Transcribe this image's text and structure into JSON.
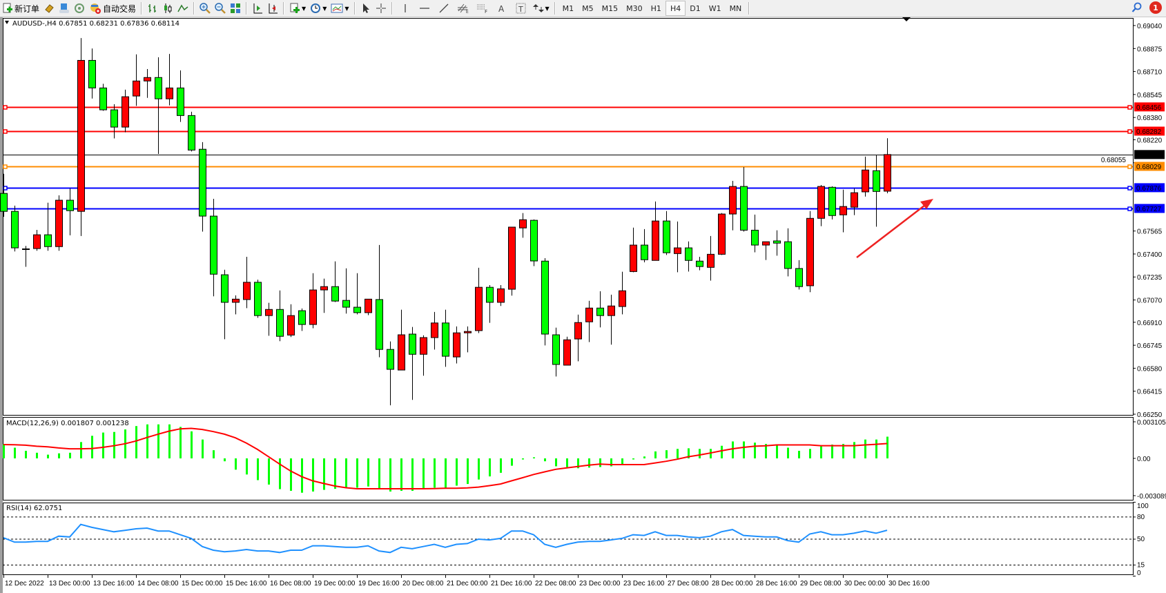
{
  "toolbar": {
    "new_order_label": "新订单",
    "auto_trading_label": "自动交易",
    "timeframes": [
      "M1",
      "M5",
      "M15",
      "M30",
      "H1",
      "H4",
      "D1",
      "W1",
      "MN"
    ],
    "selected_timeframe": "H4",
    "notification_count": "1",
    "icons": [
      "new-order-icon",
      "market-watch-icon",
      "data-window-icon",
      "navigator-icon",
      "signal-icon",
      "auto-trading-icon",
      "bar-chart-icon",
      "candlestick-icon",
      "line-chart-icon",
      "zoom-in-icon",
      "zoom-out-icon",
      "tile-windows-icon",
      "auto-scroll-icon",
      "chart-shift-icon",
      "indicators-icon",
      "periods-icon",
      "templates-icon",
      "cursor-icon",
      "crosshair-icon",
      "vertical-line-icon",
      "horizontal-line-icon",
      "trendline-icon",
      "fibonacci-icon",
      "text-icon",
      "text-label-icon",
      "arrows-icon",
      "search-icon",
      "notification-icon"
    ],
    "tools": {
      "fibo": "F",
      "text": "A",
      "label": "T"
    }
  },
  "chart": {
    "header": "AUDUSD-,H4  0.67851 0.68231 0.67836 0.68114",
    "symbol": "AUDUSD-",
    "timeframe": "H4",
    "ohlc_header": {
      "open": 0.67851,
      "high": 0.68231,
      "low": 0.67836,
      "close": 0.68114
    },
    "colors": {
      "bull": "#ff0000",
      "bear": "#00ff00",
      "outline": "#000000",
      "macd_hist": "#00ff00",
      "macd_signal": "#ff0000",
      "rsi": "#1e90ff",
      "arrow": "#ee2222"
    },
    "price_ticks": [
      "0.69040",
      "0.68875",
      "0.68710",
      "0.68545",
      "0.68380",
      "0.68220",
      "0.68055",
      "0.67565",
      "0.67400",
      "0.67235",
      "0.67070",
      "0.66910",
      "0.66745",
      "0.66580",
      "0.66415",
      "0.66250"
    ],
    "levels": [
      {
        "price": "0.68456",
        "color": "#ff0000",
        "text_color": "#ffffff"
      },
      {
        "price": "0.68282",
        "color": "#ff0000",
        "text_color": "#ffffff"
      },
      {
        "price": "0.68114",
        "color": "#000000",
        "text_color": "#ffffff",
        "bid": true
      },
      {
        "price": "0.68029",
        "color": "#ff8c00",
        "text_color": "#ffffff"
      },
      {
        "price": "0.67876",
        "color": "#0000ff",
        "text_color": "#ffffff"
      },
      {
        "price": "0.67727",
        "color": "#0000ff",
        "text_color": "#ffffff"
      }
    ],
    "date_labels": [
      "12 Dec 2022",
      "13 Dec 00:00",
      "13 Dec 16:00",
      "14 Dec 08:00",
      "15 Dec 00:00",
      "15 Dec 16:00",
      "16 Dec 08:00",
      "19 Dec 00:00",
      "19 Dec 16:00",
      "20 Dec 08:00",
      "21 Dec 00:00",
      "21 Dec 16:00",
      "22 Dec 08:00",
      "23 Dec 00:00",
      "23 Dec 16:00",
      "27 Dec 08:00",
      "28 Dec 00:00",
      "28 Dec 16:00",
      "29 Dec 08:00",
      "30 Dec 00:00",
      "30 Dec 16:00"
    ]
  },
  "chart_data": {
    "type": "candlestick",
    "ohlc_order": [
      "open",
      "high",
      "low",
      "close"
    ],
    "ylim": [
      0.6625,
      0.6904
    ],
    "candles": [
      [
        0.67835,
        0.67976,
        0.67667,
        0.67706
      ],
      [
        0.67706,
        0.67747,
        0.67418,
        0.67444
      ],
      [
        0.67437,
        0.67458,
        0.67308,
        0.67437
      ],
      [
        0.67439,
        0.67573,
        0.67423,
        0.67538
      ],
      [
        0.67538,
        0.67768,
        0.67423,
        0.67453
      ],
      [
        0.67453,
        0.67821,
        0.67423,
        0.67786
      ],
      [
        0.67786,
        0.67871,
        0.67534,
        0.67711
      ],
      [
        0.67706,
        0.6895,
        0.67529,
        0.6879
      ],
      [
        0.6879,
        0.68875,
        0.68516,
        0.68592
      ],
      [
        0.68592,
        0.68622,
        0.68428,
        0.68435
      ],
      [
        0.68435,
        0.68475,
        0.6823,
        0.68311
      ],
      [
        0.68311,
        0.6858,
        0.68274,
        0.68529
      ],
      [
        0.68534,
        0.68833,
        0.68463,
        0.68642
      ],
      [
        0.68642,
        0.68728,
        0.68521,
        0.68667
      ],
      [
        0.68667,
        0.68812,
        0.68118,
        0.68514
      ],
      [
        0.68514,
        0.68836,
        0.68467,
        0.68592
      ],
      [
        0.68592,
        0.68718,
        0.68348,
        0.68394
      ],
      [
        0.68394,
        0.68421,
        0.68136,
        0.68146
      ],
      [
        0.68152,
        0.68203,
        0.67561,
        0.67672
      ],
      [
        0.67672,
        0.67796,
        0.67096,
        0.67255
      ],
      [
        0.67251,
        0.67287,
        0.66788,
        0.67053
      ],
      [
        0.67053,
        0.67103,
        0.66967,
        0.67076
      ],
      [
        0.67073,
        0.6738,
        0.67011,
        0.67197
      ],
      [
        0.67197,
        0.67216,
        0.66942,
        0.66958
      ],
      [
        0.66958,
        0.6705,
        0.66813,
        0.67002
      ],
      [
        0.67002,
        0.67138,
        0.66774,
        0.66809
      ],
      [
        0.66818,
        0.67039,
        0.66804,
        0.66958
      ],
      [
        0.66993,
        0.67009,
        0.66848,
        0.66894
      ],
      [
        0.66894,
        0.67262,
        0.66867,
        0.67142
      ],
      [
        0.67142,
        0.67223,
        0.66977,
        0.67166
      ],
      [
        0.67166,
        0.67347,
        0.67055,
        0.67062
      ],
      [
        0.67067,
        0.67297,
        0.66972,
        0.67018
      ],
      [
        0.67018,
        0.67262,
        0.66967,
        0.66979
      ],
      [
        0.66979,
        0.67076,
        0.66961,
        0.67076
      ],
      [
        0.67073,
        0.67465,
        0.66659,
        0.66715
      ],
      [
        0.66715,
        0.66772,
        0.66314,
        0.66572
      ],
      [
        0.66567,
        0.67,
        0.66567,
        0.6682
      ],
      [
        0.66825,
        0.66876,
        0.66353,
        0.6668
      ],
      [
        0.6668,
        0.66816,
        0.66526,
        0.668
      ],
      [
        0.668,
        0.66984,
        0.66714,
        0.66905
      ],
      [
        0.66905,
        0.67,
        0.6659,
        0.66666
      ],
      [
        0.66661,
        0.6688,
        0.66614,
        0.66834
      ],
      [
        0.66834,
        0.6688,
        0.66694,
        0.66844
      ],
      [
        0.6685,
        0.67301,
        0.66832,
        0.67161
      ],
      [
        0.67161,
        0.67177,
        0.66906,
        0.67053
      ],
      [
        0.67053,
        0.67177,
        0.67027,
        0.6715
      ],
      [
        0.67147,
        0.67593,
        0.67101,
        0.67593
      ],
      [
        0.67587,
        0.67694,
        0.67517,
        0.67646
      ],
      [
        0.67642,
        0.67648,
        0.67313,
        0.6735
      ],
      [
        0.67349,
        0.6737,
        0.66744,
        0.66825
      ],
      [
        0.6682,
        0.66871,
        0.66521,
        0.66607
      ],
      [
        0.66602,
        0.66806,
        0.66602,
        0.66784
      ],
      [
        0.6679,
        0.66965,
        0.6663,
        0.66908
      ],
      [
        0.66913,
        0.67064,
        0.66768,
        0.67012
      ],
      [
        0.67012,
        0.67133,
        0.66873,
        0.66958
      ],
      [
        0.66958,
        0.67108,
        0.66749,
        0.67027
      ],
      [
        0.67023,
        0.67273,
        0.66967,
        0.67136
      ],
      [
        0.67274,
        0.67589,
        0.67269,
        0.67464
      ],
      [
        0.67464,
        0.67579,
        0.6734,
        0.67359
      ],
      [
        0.67354,
        0.67777,
        0.67354,
        0.67637
      ],
      [
        0.67637,
        0.67708,
        0.67393,
        0.67409
      ],
      [
        0.67403,
        0.67633,
        0.67269,
        0.67444
      ],
      [
        0.67444,
        0.6749,
        0.67274,
        0.67354
      ],
      [
        0.67349,
        0.6738,
        0.67283,
        0.6731
      ],
      [
        0.67304,
        0.67529,
        0.67209,
        0.67398
      ],
      [
        0.67398,
        0.67694,
        0.67393,
        0.67687
      ],
      [
        0.67687,
        0.67925,
        0.6757,
        0.67885
      ],
      [
        0.67885,
        0.68024,
        0.67561,
        0.67571
      ],
      [
        0.67571,
        0.67683,
        0.67412,
        0.67464
      ],
      [
        0.67464,
        0.67488,
        0.67357,
        0.67488
      ],
      [
        0.67494,
        0.6757,
        0.67388,
        0.67478
      ],
      [
        0.67488,
        0.67584,
        0.67239,
        0.67296
      ],
      [
        0.67296,
        0.67356,
        0.67145,
        0.67166
      ],
      [
        0.67172,
        0.67708,
        0.67126,
        0.67656
      ],
      [
        0.67656,
        0.67895,
        0.676,
        0.67885
      ],
      [
        0.67879,
        0.67886,
        0.67648,
        0.67676
      ],
      [
        0.67681,
        0.67862,
        0.67556,
        0.67741
      ],
      [
        0.67736,
        0.67871,
        0.67679,
        0.6784
      ],
      [
        0.67846,
        0.68099,
        0.67812,
        0.68003
      ],
      [
        0.67998,
        0.68109,
        0.67596,
        0.67849
      ],
      [
        0.67851,
        0.68231,
        0.67836,
        0.68114
      ]
    ],
    "macd": {
      "label": "MACD(12,26,9) 0.001807 0.001238",
      "ylim": [
        -0.003089,
        0.003105
      ],
      "ticks": [
        "0.003105",
        "0.00",
        "-0.003089"
      ],
      "histogram": [
        0.00119,
        0.00089,
        0.00063,
        0.00047,
        0.00031,
        0.00042,
        0.00047,
        0.00136,
        0.00188,
        0.00215,
        0.0022,
        0.00241,
        0.00269,
        0.00283,
        0.00283,
        0.00283,
        0.00262,
        0.00225,
        0.00157,
        0.00068,
        -0.00024,
        -0.00094,
        -0.00134,
        -0.00181,
        -0.00218,
        -0.00256,
        -0.0027,
        -0.00286,
        -0.00276,
        -0.00262,
        -0.00253,
        -0.00248,
        -0.00244,
        -0.00234,
        -0.00251,
        -0.00276,
        -0.0027,
        -0.0027,
        -0.00253,
        -0.00244,
        -0.00248,
        -0.00227,
        -0.00213,
        -0.00176,
        -0.0015,
        -0.0012,
        -0.00061,
        -9e-05,
        9e-05,
        -0.00024,
        -0.00066,
        -0.00073,
        -0.00082,
        -0.00077,
        -0.00072,
        -0.00066,
        -0.00049,
        -9e-05,
        0.00016,
        0.00058,
        0.00068,
        0.00079,
        0.00084,
        0.00079,
        0.00079,
        0.00105,
        0.00141,
        0.00141,
        0.00131,
        0.0012,
        0.00115,
        0.00089,
        0.00063,
        0.00079,
        0.00105,
        0.00115,
        0.0012,
        0.00136,
        0.00157,
        0.00157,
        0.001807
      ],
      "signal": [
        0.00115,
        0.00113,
        0.0011,
        0.00101,
        0.00096,
        0.00087,
        0.0008,
        0.0008,
        0.00082,
        0.00092,
        0.00105,
        0.00122,
        0.00145,
        0.00174,
        0.00202,
        0.00227,
        0.00246,
        0.0025,
        0.00241,
        0.00223,
        0.00202,
        0.00171,
        0.00127,
        0.00075,
        0.00014,
        -0.00047,
        -0.00105,
        -0.00152,
        -0.00187,
        -0.00209,
        -0.0023,
        -0.00244,
        -0.00253,
        -0.00253,
        -0.00253,
        -0.00253,
        -0.00253,
        -0.00253,
        -0.00253,
        -0.00251,
        -0.00248,
        -0.00248,
        -0.00246,
        -0.00239,
        -0.00227,
        -0.00213,
        -0.00187,
        -0.00161,
        -0.00134,
        -0.00112,
        -0.00091,
        -0.00079,
        -0.00068,
        -0.00056,
        -0.00047,
        -0.00052,
        -0.00052,
        -0.00052,
        -0.00052,
        -0.00038,
        -0.00024,
        -7e-05,
        0.00014,
        0.00028,
        0.00045,
        0.00063,
        0.0008,
        0.00092,
        0.00101,
        0.00105,
        0.00112,
        0.00112,
        0.00112,
        0.00112,
        0.00106,
        0.00106,
        0.00106,
        0.00106,
        0.00112,
        0.00117,
        0.001238
      ]
    },
    "rsi": {
      "label": "RSI(14) 62.0751",
      "ylim": [
        0,
        100
      ],
      "ticks": [
        "100",
        "80",
        "50",
        "15",
        "0"
      ],
      "levels": [
        80,
        50,
        15
      ],
      "values": [
        52,
        46,
        46,
        47,
        47,
        54,
        53,
        70,
        66,
        63,
        60,
        62,
        64,
        65,
        61,
        61,
        56,
        51,
        40,
        35,
        33,
        34,
        36,
        34,
        34,
        32,
        35,
        35,
        41,
        41,
        40,
        39,
        39,
        41,
        34,
        32,
        39,
        37,
        40,
        43,
        39,
        43,
        44,
        50,
        49,
        51,
        61,
        61,
        56,
        43,
        39,
        43,
        46,
        47,
        47,
        49,
        51,
        56,
        55,
        60,
        55,
        55,
        53,
        52,
        54,
        60,
        63,
        55,
        54,
        53,
        53,
        48,
        46,
        57,
        60,
        56,
        56,
        58,
        61,
        58,
        62.0751
      ]
    }
  }
}
